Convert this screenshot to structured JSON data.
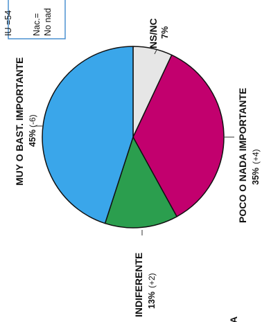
{
  "chart_data": {
    "type": "pie",
    "slices": [
      {
        "label": "NS/NC",
        "value": 7,
        "value_text": "7%",
        "change_text": "",
        "color": "#e6e6e6"
      },
      {
        "label": "POCO O NADA IMPORTANTE",
        "value": 35,
        "value_text": "35%",
        "change_text": "(+4)",
        "color": "#c2006e"
      },
      {
        "label": "INDIFERENTE",
        "value": 13,
        "value_text": "13%",
        "change_text": "(+2)",
        "color": "#2b9e4e"
      },
      {
        "label": "MUY O BAST. IMPORTANTE",
        "value": 45,
        "value_text": "45%",
        "change_text": "(-6)",
        "color": "#3aa6ea"
      }
    ],
    "start_angle_deg": 0,
    "direction": "clockwise",
    "orientation": "rotated-90-counterclockwise"
  },
  "legend_box": {
    "lines": [
      "IU =54",
      "Nac.=",
      "No nad"
    ],
    "border_color": "#4a90d0"
  },
  "edge_fragment": "A"
}
